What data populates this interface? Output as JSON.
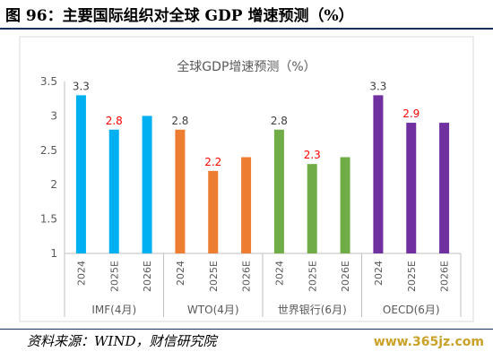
{
  "figure": {
    "title": "图 96：主要国际组织对全球 GDP 增速预测（%）",
    "source": "资料来源：WIND，财信研究院",
    "watermark": "www.365jz.com"
  },
  "chart_data": {
    "type": "bar",
    "title": "全球GDP增速预测（%）",
    "xlabel": "",
    "ylabel": "",
    "ylim": [
      1,
      3.5
    ],
    "yticks": [
      "1",
      "1.5",
      "2",
      "2.5",
      "3",
      "3.5"
    ],
    "grid": false,
    "legend": "none",
    "groups": [
      {
        "name": "IMF(4月)",
        "color": "#00b0f0",
        "categories": [
          "2024",
          "2025E",
          "2026E"
        ],
        "values": [
          3.3,
          2.8,
          3.0
        ],
        "labels": [
          "3.3",
          "2.8",
          ""
        ]
      },
      {
        "name": "WTO(4月)",
        "color": "#ed7d31",
        "categories": [
          "2024",
          "2025E",
          "2026E"
        ],
        "values": [
          2.8,
          2.2,
          2.4
        ],
        "labels": [
          "2.8",
          "2.2",
          ""
        ]
      },
      {
        "name": "世界银行(6月)",
        "color": "#70ad47",
        "categories": [
          "2024",
          "2025E",
          "2026E"
        ],
        "values": [
          2.8,
          2.3,
          2.4
        ],
        "labels": [
          "2.8",
          "2.3",
          ""
        ]
      },
      {
        "name": "OECD(6月)",
        "color": "#7030a0",
        "categories": [
          "2024",
          "2025E",
          "2026E"
        ],
        "values": [
          3.3,
          2.9,
          2.9
        ],
        "labels": [
          "3.3",
          "2.9",
          ""
        ]
      }
    ],
    "label_colors": {
      "actual": "#404040",
      "forecast": "#ff0000"
    }
  }
}
